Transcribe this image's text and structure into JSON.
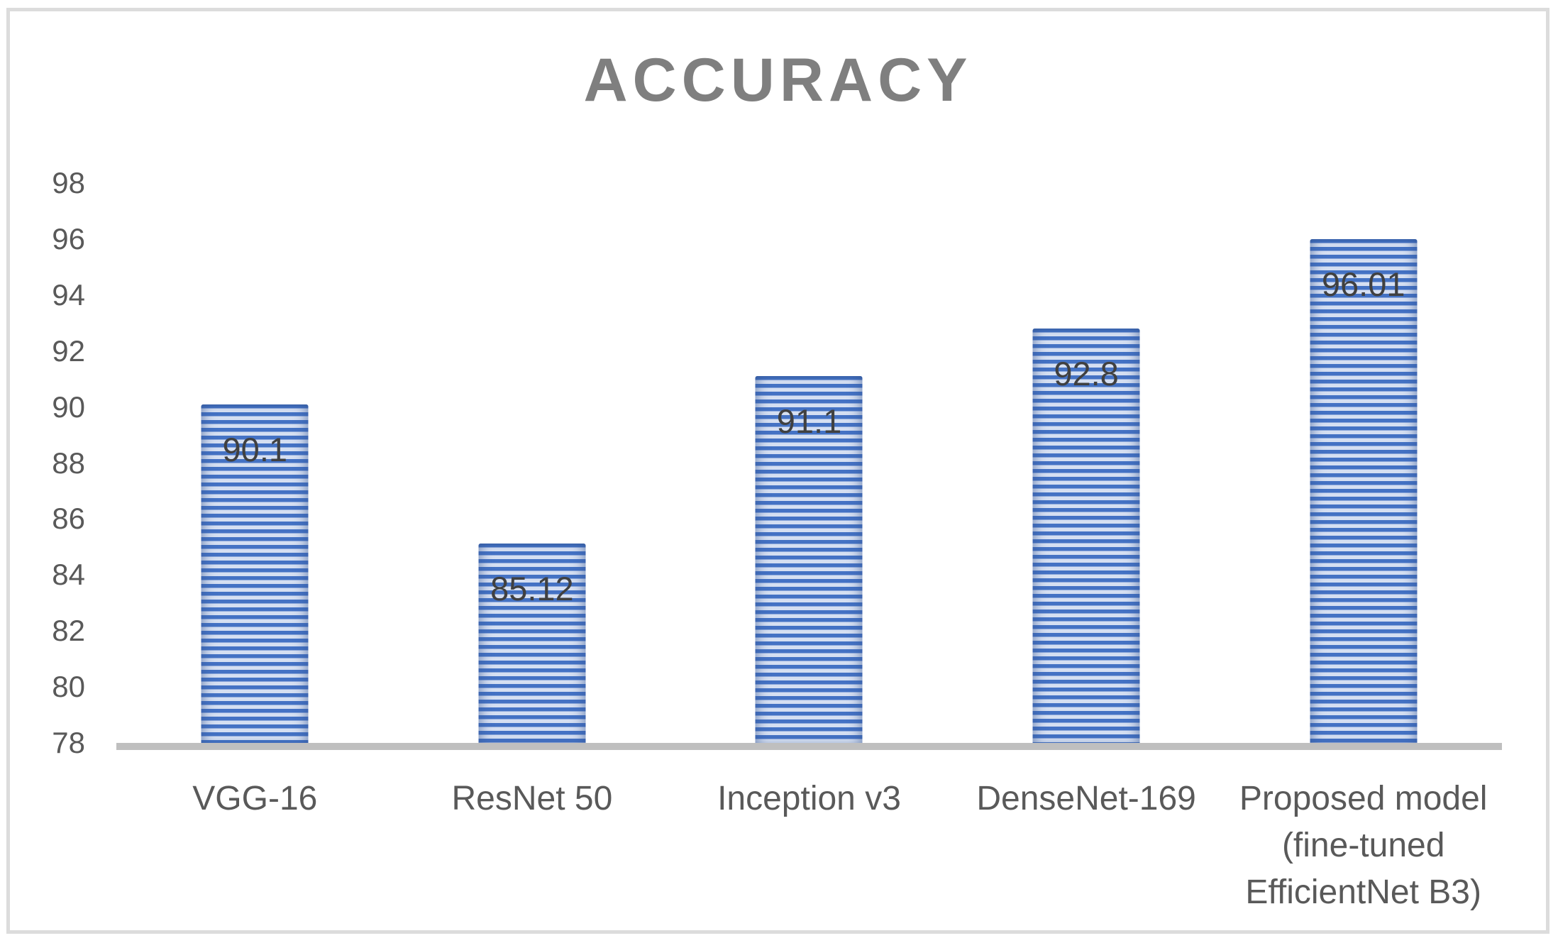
{
  "chart_data": {
    "type": "bar",
    "title": "ACCURACY",
    "categories": [
      "VGG-16",
      "ResNet 50",
      "Inception v3",
      "DenseNet-169",
      "Proposed model (fine-tuned EfficientNet B3)"
    ],
    "values": [
      90.1,
      85.12,
      91.1,
      92.8,
      96.01
    ],
    "data_labels": [
      "90.1",
      "85.12",
      "91.1",
      "92.8",
      "96.01"
    ],
    "xlabel": "",
    "ylabel": "",
    "ylim": [
      78,
      98
    ],
    "y_ticks": [
      98,
      96,
      94,
      92,
      90,
      88,
      86,
      84,
      82,
      80,
      78
    ],
    "grid": false,
    "legend": "none",
    "colors": {
      "bar_stripe_blue": "#4472C4",
      "bar_stripe_light": "#D5DFF2",
      "title_text": "#7F7F7F",
      "axis_tick_text": "#595959",
      "category_text": "#595959",
      "data_label_text": "#404040",
      "axis_line": "#BFBFBF",
      "frame_border": "#DCDCDC",
      "background": "#FFFFFF"
    }
  }
}
